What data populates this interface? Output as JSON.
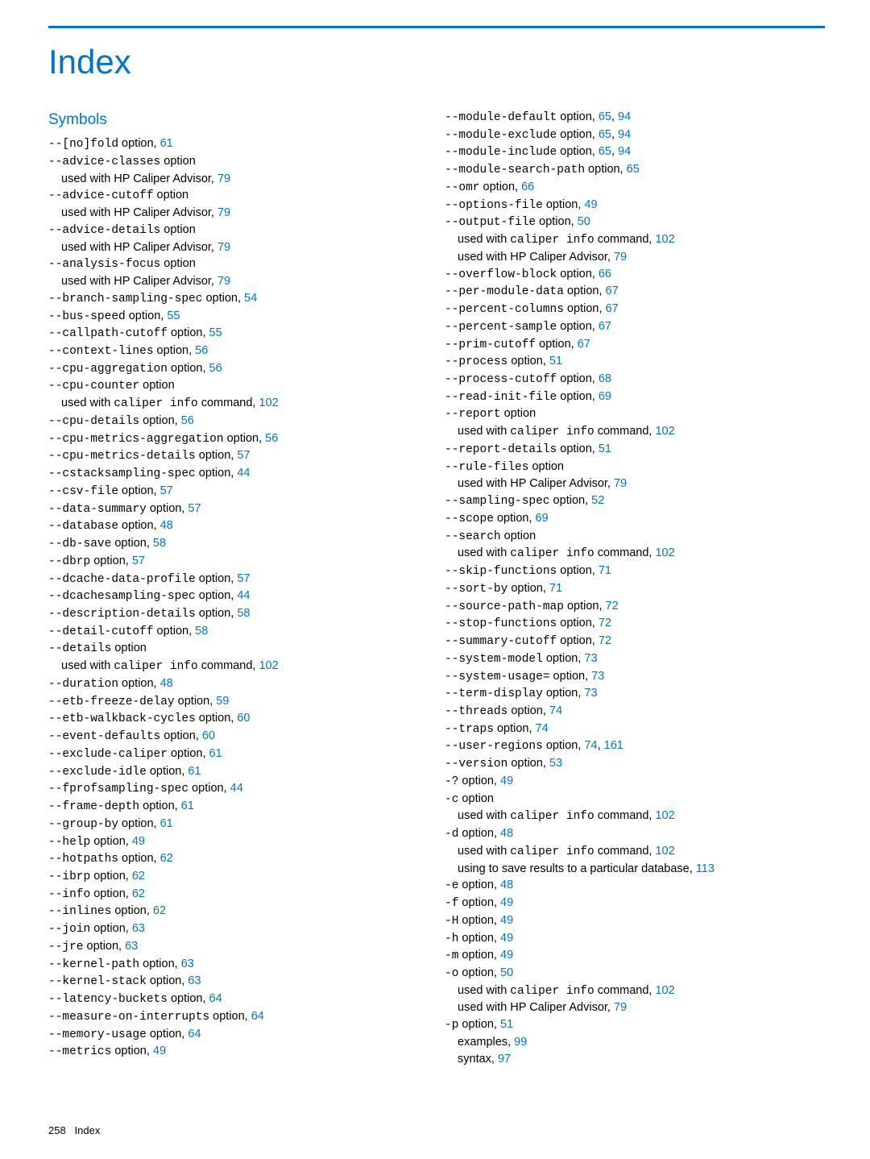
{
  "accent_color": "#0073cf",
  "text_color": "#000000",
  "bg_color": "#ffffff",
  "title": "Index",
  "section": "Symbols",
  "footer_pagenum": "258",
  "footer_label": "Index",
  "left": [
    {
      "pre": "--[no]fold",
      "post": " option, ",
      "pg": "61"
    },
    {
      "pre": "--advice-classes",
      "post": " option"
    },
    {
      "sub": true,
      "text": "used with HP Caliper Advisor, ",
      "pg": "79"
    },
    {
      "pre": "--advice-cutoff",
      "post": " option"
    },
    {
      "sub": true,
      "text": "used with HP Caliper Advisor, ",
      "pg": "79"
    },
    {
      "pre": "--advice-details",
      "post": " option"
    },
    {
      "sub": true,
      "text": "used with HP Caliper Advisor, ",
      "pg": "79"
    },
    {
      "pre": "--analysis-focus",
      "post": " option"
    },
    {
      "sub": true,
      "text": "used with HP Caliper Advisor, ",
      "pg": "79"
    },
    {
      "pre": "--branch-sampling-spec",
      "post": " option, ",
      "pg": "54"
    },
    {
      "pre": "--bus-speed",
      "post": " option, ",
      "pg": "55"
    },
    {
      "pre": "--callpath-cutoff",
      "post": " option, ",
      "pg": "55"
    },
    {
      "pre": "--context-lines",
      "post": " option, ",
      "pg": "56"
    },
    {
      "pre": "--cpu-aggregation",
      "post": " option, ",
      "pg": "56"
    },
    {
      "pre": "--cpu-counter",
      "post": " option"
    },
    {
      "sub": true,
      "text": "used with ",
      "mono": "caliper info",
      "text2": " command, ",
      "pg": "102"
    },
    {
      "pre": "--cpu-details",
      "post": " option, ",
      "pg": "56"
    },
    {
      "pre": "--cpu-metrics-aggregation",
      "post": " option, ",
      "pg": "56"
    },
    {
      "pre": "--cpu-metrics-details",
      "post": " option, ",
      "pg": "57"
    },
    {
      "pre": "--cstacksampling-spec",
      "post": " option, ",
      "pg": "44"
    },
    {
      "pre": "--csv-file",
      "post": " option, ",
      "pg": "57"
    },
    {
      "pre": "--data-summary",
      "post": " option, ",
      "pg": "57"
    },
    {
      "pre": "--database",
      "post": " option, ",
      "pg": "48"
    },
    {
      "pre": "--db-save",
      "post": " option, ",
      "pg": "58"
    },
    {
      "pre": "--dbrp",
      "post": " option, ",
      "pg": "57"
    },
    {
      "pre": "--dcache-data-profile",
      "post": " option, ",
      "pg": "57"
    },
    {
      "pre": "--dcachesampling-spec",
      "post": " option, ",
      "pg": "44"
    },
    {
      "pre": "--description-details",
      "post": " option, ",
      "pg": "58"
    },
    {
      "pre": "--detail-cutoff",
      "post": " option, ",
      "pg": "58"
    },
    {
      "pre": "--details",
      "post": " option"
    },
    {
      "sub": true,
      "text": "used with ",
      "mono": "caliper info",
      "text2": " command, ",
      "pg": "102"
    },
    {
      "pre": "--duration",
      "post": " option, ",
      "pg": "48"
    },
    {
      "pre": "--etb-freeze-delay",
      "post": " option, ",
      "pg": "59"
    },
    {
      "pre": "--etb-walkback-cycles",
      "post": " option, ",
      "pg": "60"
    },
    {
      "pre": "--event-defaults",
      "post": " option, ",
      "pg": "60"
    },
    {
      "pre": "--exclude-caliper",
      "post": " option, ",
      "pg": "61"
    },
    {
      "pre": "--exclude-idle",
      "post": " option, ",
      "pg": "61"
    },
    {
      "pre": "--fprofsampling-spec",
      "post": " option, ",
      "pg": "44"
    },
    {
      "pre": "--frame-depth",
      "post": " option, ",
      "pg": "61"
    },
    {
      "pre": "--group-by",
      "post": " option, ",
      "pg": "61"
    },
    {
      "pre": "--help",
      "post": " option, ",
      "pg": "49"
    },
    {
      "pre": "--hotpaths",
      "post": " option, ",
      "pg": "62"
    },
    {
      "pre": "--ibrp",
      "post": " option, ",
      "pg": "62"
    },
    {
      "pre": "--info",
      "post": " option, ",
      "pg": "62"
    },
    {
      "pre": "--inlines",
      "post": " option, ",
      "pg": "62"
    },
    {
      "pre": "--join",
      "post": " option, ",
      "pg": "63"
    },
    {
      "pre": "--jre",
      "post": " option, ",
      "pg": "63"
    },
    {
      "pre": "--kernel-path",
      "post": " option, ",
      "pg": "63"
    },
    {
      "pre": "--kernel-stack",
      "post": " option, ",
      "pg": "63"
    },
    {
      "pre": "--latency-buckets",
      "post": " option, ",
      "pg": "64"
    },
    {
      "pre": "--measure-on-interrupts",
      "post": " option, ",
      "pg": "64"
    },
    {
      "pre": "--memory-usage",
      "post": " option, ",
      "pg": "64"
    },
    {
      "pre": "--metrics",
      "post": " option, ",
      "pg": "49"
    }
  ],
  "right": [
    {
      "pre": "--module-default",
      "post": " option, ",
      "pg": "65",
      "pg2": "94"
    },
    {
      "pre": "--module-exclude",
      "post": " option, ",
      "pg": "65",
      "pg2": "94"
    },
    {
      "pre": "--module-include",
      "post": " option, ",
      "pg": "65",
      "pg2": "94"
    },
    {
      "pre": "--module-search-path",
      "post": " option, ",
      "pg": "65"
    },
    {
      "pre": "--omr",
      "post": " option, ",
      "pg": "66"
    },
    {
      "pre": "--options-file",
      "post": " option, ",
      "pg": "49"
    },
    {
      "pre": "--output-file",
      "post": " option, ",
      "pg": "50"
    },
    {
      "sub": true,
      "text": "used with ",
      "mono": "caliper info",
      "text2": " command, ",
      "pg": "102"
    },
    {
      "sub": true,
      "text": "used with HP Caliper Advisor, ",
      "pg": "79"
    },
    {
      "pre": "--overflow-block",
      "post": " option, ",
      "pg": "66"
    },
    {
      "pre": "--per-module-data",
      "post": " option, ",
      "pg": "67"
    },
    {
      "pre": "--percent-columns",
      "post": " option, ",
      "pg": "67"
    },
    {
      "pre": "--percent-sample",
      "post": " option, ",
      "pg": "67"
    },
    {
      "pre": "--prim-cutoff",
      "post": " option, ",
      "pg": "67"
    },
    {
      "pre": "--process",
      "post": " option, ",
      "pg": "51"
    },
    {
      "pre": "--process-cutoff",
      "post": " option, ",
      "pg": "68"
    },
    {
      "pre": "--read-init-file",
      "post": " option, ",
      "pg": "69"
    },
    {
      "pre": "--report",
      "post": " option"
    },
    {
      "sub": true,
      "text": "used with ",
      "mono": "caliper info",
      "text2": " command, ",
      "pg": "102"
    },
    {
      "pre": "--report-details",
      "post": " option, ",
      "pg": "51"
    },
    {
      "pre": "--rule-files",
      "post": " option"
    },
    {
      "sub": true,
      "text": "used with HP Caliper Advisor, ",
      "pg": "79"
    },
    {
      "pre": "--sampling-spec",
      "post": " option, ",
      "pg": "52"
    },
    {
      "pre": "--scope",
      "post": " option, ",
      "pg": "69"
    },
    {
      "pre": "--search",
      "post": " option"
    },
    {
      "sub": true,
      "text": "used with ",
      "mono": "caliper info",
      "text2": " command, ",
      "pg": "102"
    },
    {
      "pre": "--skip-functions",
      "post": " option, ",
      "pg": "71"
    },
    {
      "pre": "--sort-by",
      "post": " option, ",
      "pg": "71"
    },
    {
      "pre": "--source-path-map",
      "post": " option, ",
      "pg": "72"
    },
    {
      "pre": "--stop-functions",
      "post": " option, ",
      "pg": "72"
    },
    {
      "pre": "--summary-cutoff",
      "post": " option, ",
      "pg": "72"
    },
    {
      "pre": "--system-model",
      "post": " option, ",
      "pg": "73"
    },
    {
      "pre": "--system-usage=",
      "post": " option, ",
      "pg": "73"
    },
    {
      "pre": "--term-display",
      "post": " option, ",
      "pg": "73"
    },
    {
      "pre": "--threads",
      "post": " option, ",
      "pg": "74"
    },
    {
      "pre": "--traps",
      "post": " option, ",
      "pg": "74"
    },
    {
      "pre": "--user-regions",
      "post": " option, ",
      "pg": "74",
      "pg2": "161"
    },
    {
      "pre": "--version",
      "post": " option, ",
      "pg": "53"
    },
    {
      "pre": "-?",
      "post": " option, ",
      "pg": "49"
    },
    {
      "pre": "-c",
      "post": " option"
    },
    {
      "sub": true,
      "text": "used with ",
      "mono": "caliper info",
      "text2": " command, ",
      "pg": "102"
    },
    {
      "pre": "-d",
      "post": " option, ",
      "pg": "48"
    },
    {
      "sub": true,
      "text": "used with ",
      "mono": "caliper info",
      "text2": " command, ",
      "pg": "102"
    },
    {
      "sub": true,
      "text": "using to save results to a particular database, ",
      "pg": "113"
    },
    {
      "pre": "-e",
      "post": " option, ",
      "pg": "48"
    },
    {
      "pre": "-f",
      "post": " option, ",
      "pg": "49"
    },
    {
      "pre": "-H",
      "post": " option, ",
      "pg": "49"
    },
    {
      "pre": "-h",
      "post": " option, ",
      "pg": "49"
    },
    {
      "pre": "-m",
      "post": " option, ",
      "pg": "49"
    },
    {
      "pre": "-o",
      "post": " option, ",
      "pg": "50"
    },
    {
      "sub": true,
      "text": "used with ",
      "mono": "caliper info",
      "text2": " command, ",
      "pg": "102"
    },
    {
      "sub": true,
      "text": "used with HP Caliper Advisor, ",
      "pg": "79"
    },
    {
      "pre": "-p",
      "post": " option, ",
      "pg": "51"
    },
    {
      "sub": true,
      "text": "examples, ",
      "pg": "99"
    },
    {
      "sub": true,
      "text": "syntax, ",
      "pg": "97"
    }
  ]
}
